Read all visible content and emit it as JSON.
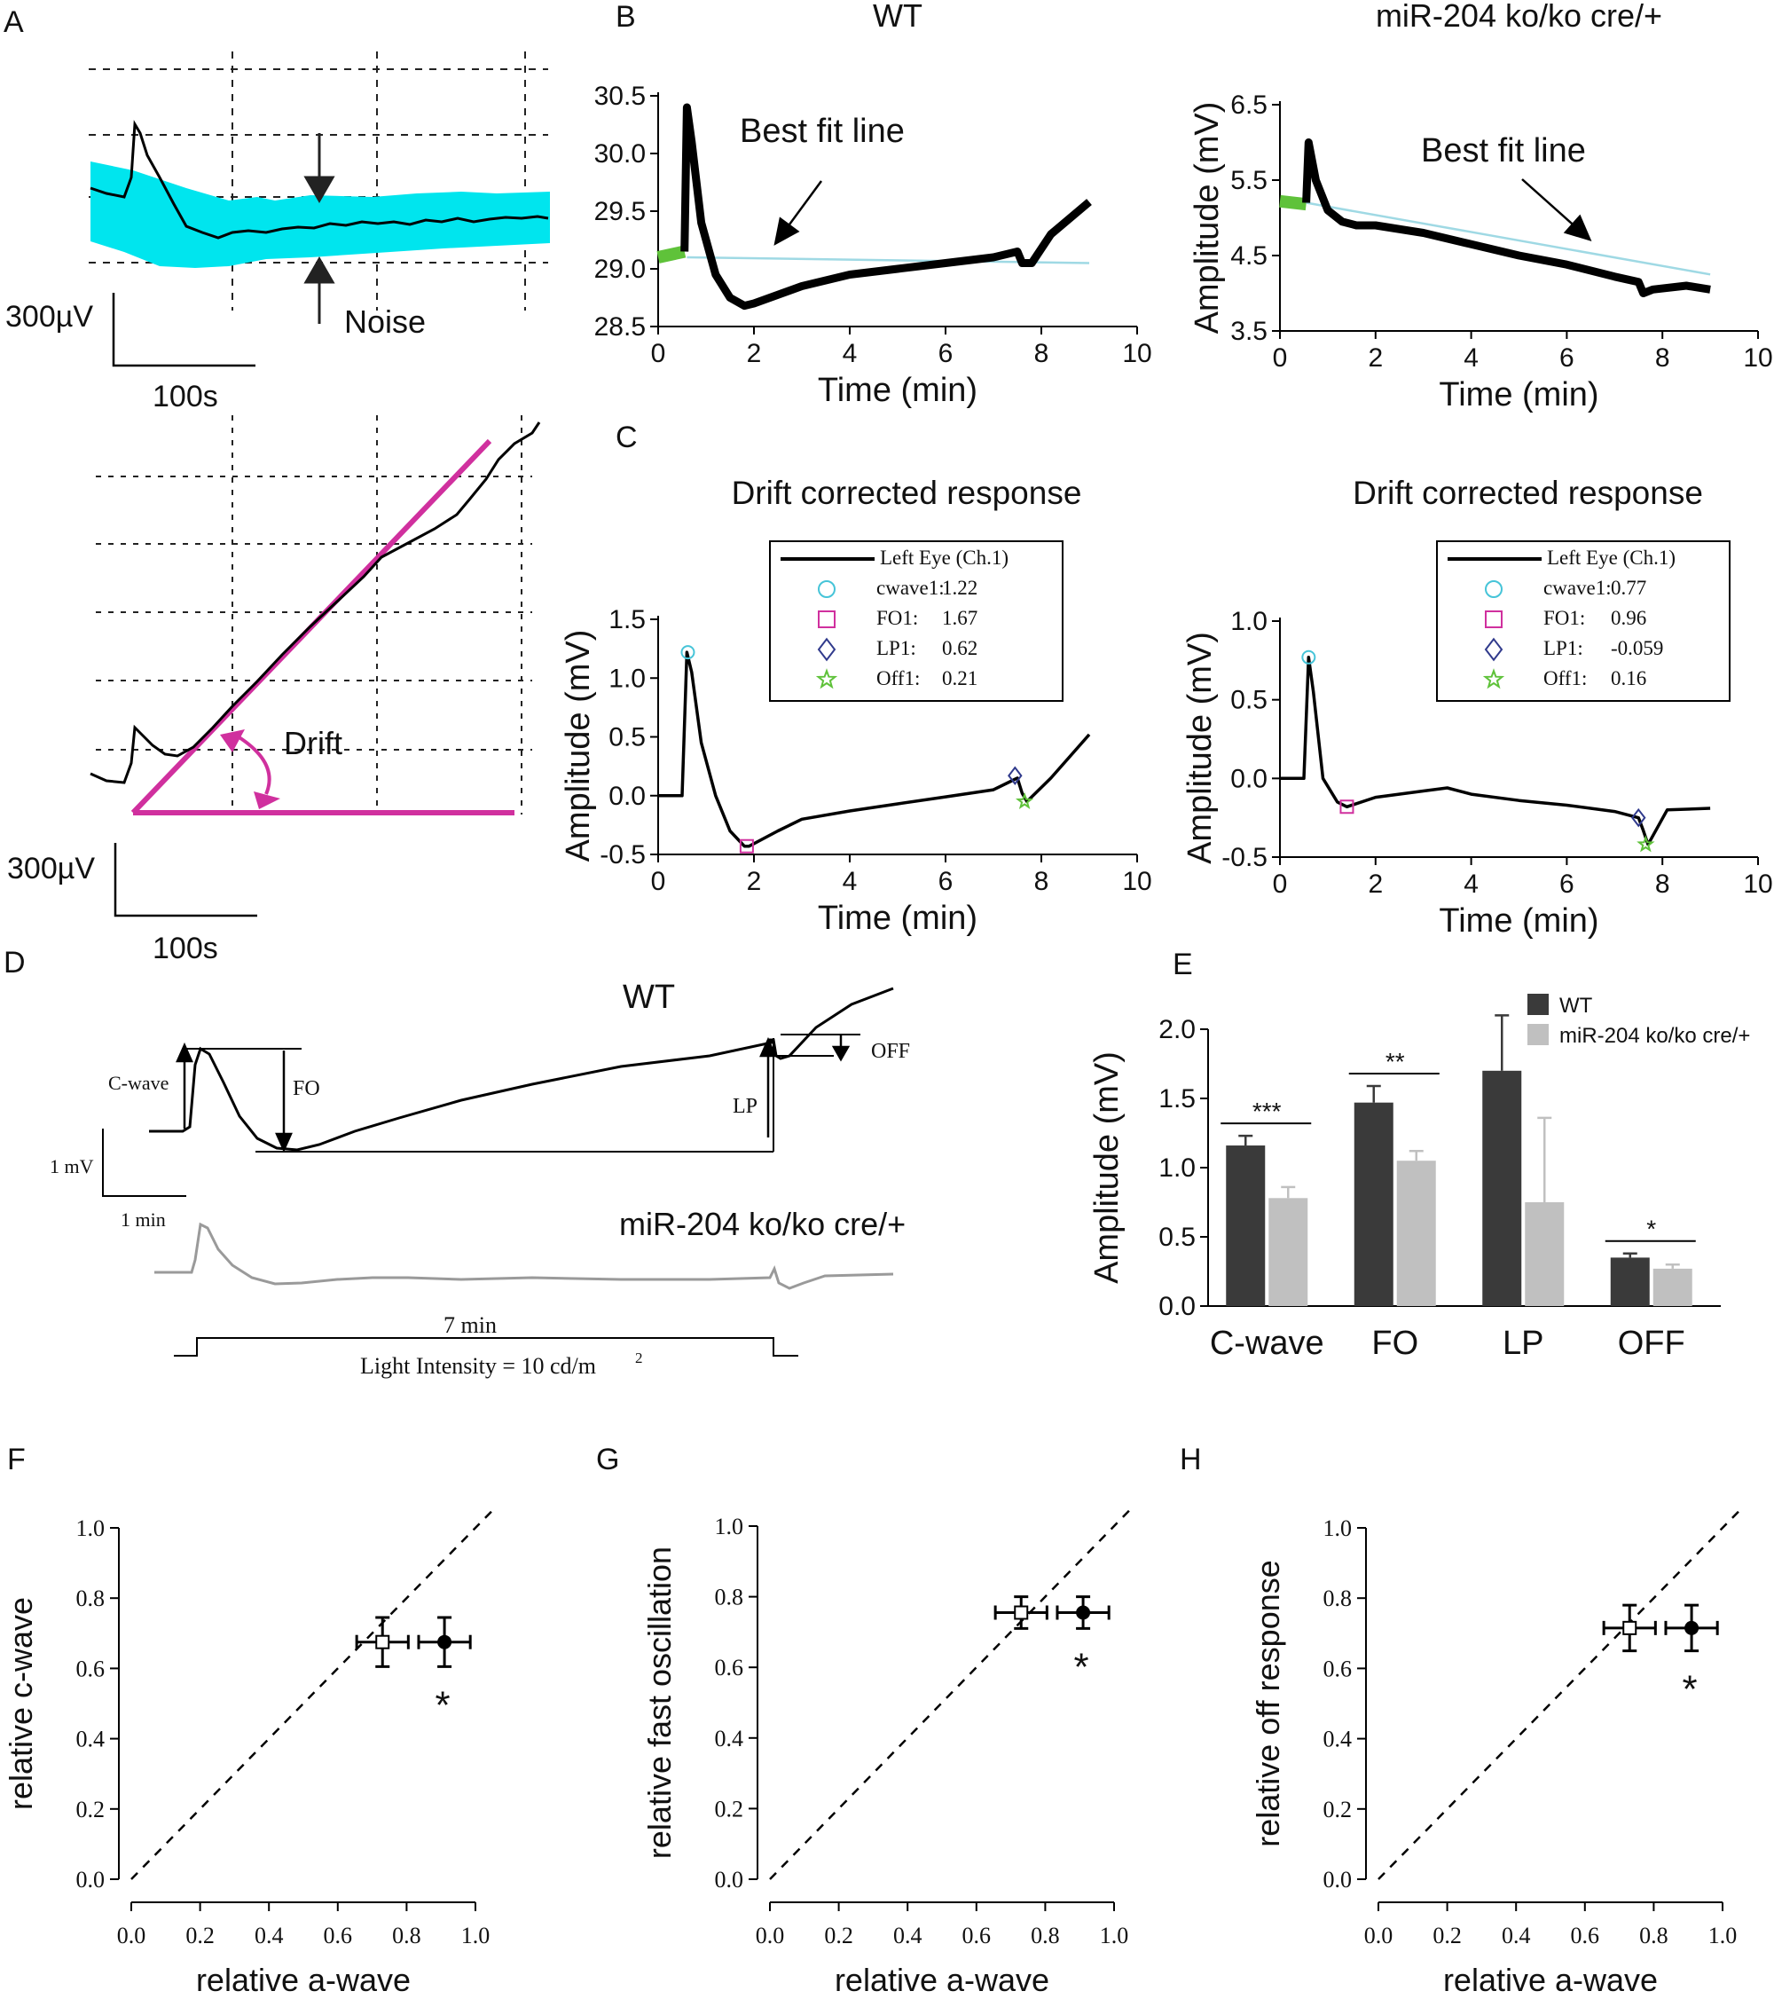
{
  "chart_data": {
    "panelA": {
      "label": "A",
      "scale_top": {
        "y": "300µV",
        "x": "100s"
      },
      "noise_label": "Noise",
      "scale_bottom": {
        "y": "300µV",
        "x": "100s"
      },
      "drift_label": "Drift",
      "colors": {
        "noise_band": "#00e5ee",
        "drift": "#d0309e"
      }
    },
    "panelB": {
      "label": "B",
      "charts": [
        {
          "type": "line",
          "title": "WT",
          "xlabel": "Time (min)",
          "ylabel": "",
          "xlim": [
            0,
            10
          ],
          "ylim": [
            28.5,
            30.5
          ],
          "xticks": [
            "0",
            "2",
            "4",
            "6",
            "8",
            "10"
          ],
          "yticks": [
            "28.5",
            "29.0",
            "29.5",
            "30.0",
            "30.5"
          ],
          "annotation": "Best fit line",
          "baseline": {
            "x": [
              0.0,
              0.55
            ],
            "y": [
              29.1,
              29.15
            ]
          },
          "fit_line": {
            "x": [
              0.6,
              9.0
            ],
            "y": [
              29.1,
              29.05
            ]
          },
          "trace": {
            "x": [
              0.55,
              0.6,
              0.7,
              0.9,
              1.2,
              1.5,
              1.8,
              2.0,
              3.0,
              4.0,
              5.0,
              6.0,
              7.0,
              7.5,
              7.6,
              7.8,
              8.2,
              9.0
            ],
            "y": [
              29.15,
              30.4,
              30.1,
              29.4,
              28.95,
              28.75,
              28.68,
              28.7,
              28.85,
              28.95,
              29.0,
              29.05,
              29.1,
              29.15,
              29.05,
              29.05,
              29.3,
              29.58
            ]
          }
        },
        {
          "type": "line",
          "title": "miR-204 ko/ko cre/+",
          "xlabel": "Time (min)",
          "ylabel": "Amplitude (mV)",
          "xlim": [
            0,
            10
          ],
          "ylim": [
            3.5,
            6.5
          ],
          "xticks": [
            "0",
            "2",
            "4",
            "6",
            "8",
            "10"
          ],
          "yticks": [
            "3.5",
            "4.5",
            "5.5",
            "6.5"
          ],
          "annotation": "Best fit line",
          "baseline": {
            "x": [
              0.0,
              0.55
            ],
            "y": [
              5.22,
              5.18
            ]
          },
          "fit_line": {
            "x": [
              0.55,
              9.0
            ],
            "y": [
              5.2,
              4.25
            ]
          },
          "trace": {
            "x": [
              0.55,
              0.6,
              0.75,
              1.0,
              1.3,
              1.6,
              2.0,
              3.0,
              4.0,
              5.0,
              6.0,
              7.0,
              7.5,
              7.6,
              7.8,
              8.5,
              9.0
            ],
            "y": [
              5.2,
              6.0,
              5.5,
              5.1,
              4.95,
              4.9,
              4.9,
              4.8,
              4.65,
              4.5,
              4.38,
              4.22,
              4.15,
              4.0,
              4.05,
              4.1,
              4.05
            ]
          }
        }
      ]
    },
    "panelC": {
      "label": "C",
      "charts": [
        {
          "type": "line",
          "title": "Drift corrected response",
          "xlabel": "Time (min)",
          "ylabel": "Amplitude (mV)",
          "xlim": [
            0,
            10
          ],
          "ylim": [
            -0.5,
            1.5
          ],
          "xticks": [
            "0",
            "2",
            "4",
            "6",
            "8",
            "10"
          ],
          "yticks": [
            "-0.5",
            "0.0",
            "0.5",
            "1.0",
            "1.5"
          ],
          "trace": {
            "x": [
              0.0,
              0.5,
              0.6,
              0.7,
              0.9,
              1.2,
              1.5,
              1.8,
              1.9,
              2.5,
              3.0,
              4.0,
              5.0,
              6.0,
              7.0,
              7.5,
              7.6,
              7.7,
              8.2,
              9.0
            ],
            "y": [
              0.0,
              0.0,
              1.22,
              1.05,
              0.45,
              0.0,
              -0.3,
              -0.43,
              -0.43,
              -0.3,
              -0.2,
              -0.13,
              -0.07,
              -0.01,
              0.05,
              0.15,
              0.02,
              -0.05,
              0.15,
              0.52
            ]
          },
          "legend": [
            {
              "label": "Left Eye (Ch.1)",
              "value": "",
              "marker": "line"
            },
            {
              "label": "cwave1:",
              "value": "1.22",
              "marker": "circle"
            },
            {
              "label": "FO1:",
              "value": "1.67",
              "marker": "square"
            },
            {
              "label": "LP1:",
              "value": "0.62",
              "marker": "diamond"
            },
            {
              "label": "Off1:",
              "value": "0.21",
              "marker": "star"
            }
          ],
          "markers": [
            {
              "name": "cwave1",
              "x": 0.62,
              "y": 1.22
            },
            {
              "name": "FO1",
              "x": 1.85,
              "y": -0.43
            },
            {
              "name": "LP1",
              "x": 7.45,
              "y": 0.17
            },
            {
              "name": "Off1",
              "x": 7.65,
              "y": -0.05
            }
          ]
        },
        {
          "type": "line",
          "title": "Drift corrected response",
          "xlabel": "Time (min)",
          "ylabel": "Amplitude (mV)",
          "xlim": [
            0,
            10
          ],
          "ylim": [
            -0.5,
            1.0
          ],
          "xticks": [
            "0",
            "2",
            "4",
            "6",
            "8",
            "10"
          ],
          "yticks": [
            "-0.5",
            "0.0",
            "0.5",
            "1.0"
          ],
          "trace": {
            "x": [
              0.0,
              0.5,
              0.6,
              0.7,
              0.9,
              1.2,
              1.4,
              2.0,
              3.0,
              3.5,
              4.0,
              5.0,
              6.0,
              7.0,
              7.5,
              7.6,
              7.7,
              8.1,
              9.0
            ],
            "y": [
              0.0,
              0.0,
              0.77,
              0.55,
              0.0,
              -0.15,
              -0.18,
              -0.12,
              -0.08,
              -0.06,
              -0.1,
              -0.14,
              -0.17,
              -0.21,
              -0.25,
              -0.33,
              -0.42,
              -0.2,
              -0.19
            ]
          },
          "legend": [
            {
              "label": "Left Eye (Ch.1)",
              "value": "",
              "marker": "line"
            },
            {
              "label": "cwave1:",
              "value": "0.77",
              "marker": "circle"
            },
            {
              "label": "FO1:",
              "value": "0.96",
              "marker": "square"
            },
            {
              "label": "LP1:",
              "value": "-0.059",
              "marker": "diamond"
            },
            {
              "label": "Off1:",
              "value": "0.16",
              "marker": "star"
            }
          ],
          "markers": [
            {
              "name": "cwave1",
              "x": 0.6,
              "y": 0.77
            },
            {
              "name": "FO1",
              "x": 1.4,
              "y": -0.18
            },
            {
              "name": "LP1",
              "x": 7.5,
              "y": -0.25
            },
            {
              "name": "Off1",
              "x": 7.65,
              "y": -0.42
            }
          ]
        }
      ]
    },
    "panelD": {
      "label": "D",
      "wt_label": "WT",
      "ko_label": "miR-204 ko/ko cre/+",
      "annotations": {
        "cwave": "C-wave",
        "fo": "FO",
        "lp": "LP",
        "off": "OFF"
      },
      "scale": {
        "y": "1 mV",
        "x": "1 min"
      },
      "stimulus": {
        "duration": "7 min",
        "intensity": "Light Intensity = 10 cd/m",
        "superscript": "2"
      }
    },
    "panelE": {
      "label": "E",
      "type": "bar",
      "ylabel": "Amplitude (mV)",
      "ylim": [
        0,
        2.0
      ],
      "yticks": [
        "0.0",
        "0.5",
        "1.0",
        "1.5",
        "2.0"
      ],
      "categories": [
        "C-wave",
        "FO",
        "LP",
        "OFF"
      ],
      "series": [
        {
          "name": "WT",
          "color": "#3a3a3a",
          "values": [
            1.16,
            1.47,
            1.7,
            0.35
          ],
          "errors": [
            0.07,
            0.12,
            0.4,
            0.03
          ]
        },
        {
          "name": "miR-204 ko/ko cre/+",
          "color": "#c0c0c0",
          "values": [
            0.78,
            1.05,
            0.75,
            0.27
          ],
          "errors": [
            0.08,
            0.07,
            0.61,
            0.03
          ]
        }
      ],
      "significance": [
        "***",
        "**",
        "",
        "*"
      ]
    },
    "scatter_panels": [
      {
        "label": "F",
        "type": "scatter",
        "xlabel": "relative a-wave",
        "ylabel": "relative c-wave",
        "xlim": [
          0,
          1.0
        ],
        "ylim": [
          0,
          1.0
        ],
        "ticks": [
          "0.0",
          "0.2",
          "0.4",
          "0.6",
          "0.8",
          "1.0"
        ],
        "points": [
          {
            "name": "open",
            "x": 0.73,
            "y": 0.675,
            "xerr": 0.075,
            "yerr": 0.07
          },
          {
            "name": "filled",
            "x": 0.91,
            "y": 0.675,
            "xerr": 0.075,
            "yerr": 0.07
          }
        ],
        "significance": "*"
      },
      {
        "label": "G",
        "type": "scatter",
        "xlabel": "relative a-wave",
        "ylabel": "relative fast  oscillation",
        "xlim": [
          0,
          1.0
        ],
        "ylim": [
          0,
          1.0
        ],
        "ticks": [
          "0.0",
          "0.2",
          "0.4",
          "0.6",
          "0.8",
          "1.0"
        ],
        "points": [
          {
            "name": "open",
            "x": 0.73,
            "y": 0.755,
            "xerr": 0.075,
            "yerr": 0.045
          },
          {
            "name": "filled",
            "x": 0.91,
            "y": 0.755,
            "xerr": 0.075,
            "yerr": 0.045
          }
        ],
        "significance": "*"
      },
      {
        "label": "H",
        "type": "scatter",
        "xlabel": "relative a-wave",
        "ylabel": "relative off response",
        "xlim": [
          0,
          1.0
        ],
        "ylim": [
          0,
          1.0
        ],
        "ticks": [
          "0.0",
          "0.2",
          "0.4",
          "0.6",
          "0.8",
          "1.0"
        ],
        "points": [
          {
            "name": "open",
            "x": 0.73,
            "y": 0.715,
            "xerr": 0.075,
            "yerr": 0.065
          },
          {
            "name": "filled",
            "x": 0.91,
            "y": 0.715,
            "xerr": 0.075,
            "yerr": 0.065
          }
        ],
        "significance": "*"
      }
    ]
  }
}
